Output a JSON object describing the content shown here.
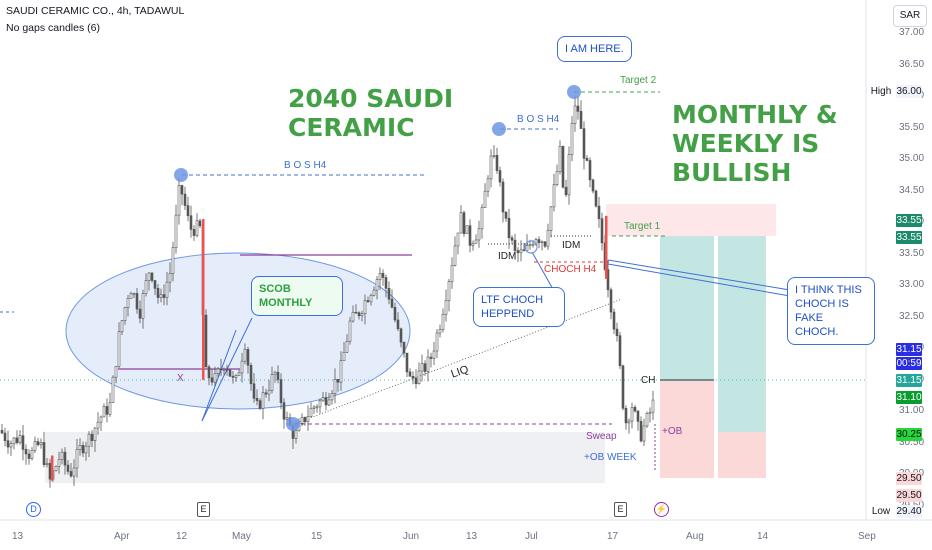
{
  "header": {
    "symbol_line": "SAUDI CERAMIC CO., 4h, TADAWUL",
    "indicator_line": "No gaps candles (6)",
    "currency": "SAR"
  },
  "annotations": {
    "title_line1": "2040 SAUDI",
    "title_line2": "CERAMIC",
    "bullish_line1": "MONTHLY &",
    "bullish_line2": "WEEKLY IS",
    "bullish_line3": "BULLISH",
    "i_am_here": "I AM HERE.",
    "scob_line1": "SCOB",
    "scob_line2": "MONTHLY",
    "ltf_line1": "LTF CHOCH",
    "ltf_line2": "HEPPEND",
    "fake_line1": "I THINK THIS",
    "fake_line2": "CHOCH IS",
    "fake_line3": "FAKE CHOCH.",
    "bos1": "B O S H4",
    "bos2": "B O S H4",
    "target1": "Target 1",
    "target2": "Target 2",
    "idm1": "IDM",
    "idm2": "IDM",
    "choch": "CHOCH H4",
    "liq": "LIQ",
    "x": "X",
    "sweap": "Sweap",
    "ob": "+OB",
    "ob_week": "+OB WEEK",
    "ch": "CH"
  },
  "price_tags": {
    "high_label": "High",
    "high_value": "36.00",
    "low_label": "Low",
    "low_value": "29.40",
    "t1a": "33.55",
    "t1b": "33.55",
    "blue_price": "31.15",
    "countdown": "00:59",
    "green_last": "31.15",
    "green_2": "31.10",
    "green_3": "30.25",
    "red_1": "29.50",
    "red_2": "29.50"
  },
  "markers": {
    "d": "D",
    "e1": "E",
    "e2": "E"
  },
  "colors": {
    "up": "#26a69a",
    "down": "#ef5350",
    "candle": "#555555",
    "accent_green": "#43a047",
    "accent_blue": "#3d6fd8"
  },
  "chart_data": {
    "type": "candlestick",
    "ylim": [
      29.0,
      37.2
    ],
    "y_ticks": [
      "37.00",
      "36.50",
      "36.00",
      "35.50",
      "35.00",
      "34.50",
      "34.00",
      "33.50",
      "33.00",
      "32.50",
      "32.00",
      "31.50",
      "31.00",
      "30.50",
      "30.00",
      "29.50"
    ],
    "x_ticks": [
      "13",
      "Apr",
      "12",
      "May",
      "15",
      "Jun",
      "13",
      "Jul",
      "17",
      "Aug",
      "14",
      "Sep"
    ],
    "price_path": [
      [
        0,
        30.7
      ],
      [
        10,
        30.5
      ],
      [
        20,
        30.6
      ],
      [
        30,
        30.3
      ],
      [
        40,
        30.5
      ],
      [
        50,
        29.9
      ],
      [
        60,
        30.3
      ],
      [
        70,
        30.0
      ],
      [
        80,
        30.4
      ],
      [
        90,
        30.6
      ],
      [
        100,
        30.9
      ],
      [
        110,
        31.1
      ],
      [
        120,
        32.3
      ],
      [
        130,
        33.0
      ],
      [
        140,
        32.6
      ],
      [
        150,
        33.3
      ],
      [
        160,
        32.7
      ],
      [
        170,
        33.2
      ],
      [
        180,
        34.6
      ],
      [
        190,
        33.9
      ],
      [
        200,
        33.9
      ],
      [
        205,
        31.6
      ],
      [
        215,
        31.5
      ],
      [
        225,
        31.8
      ],
      [
        235,
        31.4
      ],
      [
        245,
        32.1
      ],
      [
        255,
        31.0
      ],
      [
        265,
        31.3
      ],
      [
        275,
        31.6
      ],
      [
        285,
        30.9
      ],
      [
        295,
        30.6
      ],
      [
        305,
        30.9
      ],
      [
        315,
        31.1
      ],
      [
        325,
        31.2
      ],
      [
        340,
        31.6
      ],
      [
        350,
        32.4
      ],
      [
        360,
        32.6
      ],
      [
        370,
        32.9
      ],
      [
        380,
        33.2
      ],
      [
        390,
        32.8
      ],
      [
        400,
        32.1
      ],
      [
        410,
        31.5
      ],
      [
        420,
        31.6
      ],
      [
        430,
        31.8
      ],
      [
        440,
        32.4
      ],
      [
        450,
        33.2
      ],
      [
        460,
        34.1
      ],
      [
        470,
        33.7
      ],
      [
        480,
        33.9
      ],
      [
        490,
        35.0
      ],
      [
        497,
        34.9
      ],
      [
        505,
        34.0
      ],
      [
        515,
        33.5
      ],
      [
        525,
        33.5
      ],
      [
        535,
        33.8
      ],
      [
        545,
        33.7
      ],
      [
        555,
        34.6
      ],
      [
        560,
        35.1
      ],
      [
        565,
        34.2
      ],
      [
        572,
        35.6
      ],
      [
        577,
        35.9
      ],
      [
        583,
        35.2
      ],
      [
        590,
        34.6
      ],
      [
        600,
        33.9
      ],
      [
        610,
        32.8
      ],
      [
        618,
        32.0
      ],
      [
        625,
        30.8
      ],
      [
        632,
        31.1
      ],
      [
        640,
        30.6
      ],
      [
        648,
        30.9
      ],
      [
        655,
        31.2
      ]
    ],
    "horizontal_levels": [
      {
        "label": "B O S H4",
        "price": 34.6
      },
      {
        "label": "B O S H4",
        "price": 35.4
      },
      {
        "label": "Target 1",
        "price": 33.55
      },
      {
        "label": "Target 2",
        "price": 36.0
      },
      {
        "label": "CHOCH H4",
        "price": 33.2
      },
      {
        "label": "Sweap",
        "price": 30.4
      }
    ],
    "zones": [
      {
        "label": "+OB WEEK",
        "from": 29.5,
        "to": 30.35
      },
      {
        "label": "Target 1",
        "from": 33.55,
        "to": 34.05
      }
    ],
    "long_position": [
      {
        "entry": 31.15,
        "target": 33.55,
        "stop": 29.5
      },
      {
        "entry": 30.25,
        "target": 33.55,
        "stop": 29.5
      }
    ]
  }
}
